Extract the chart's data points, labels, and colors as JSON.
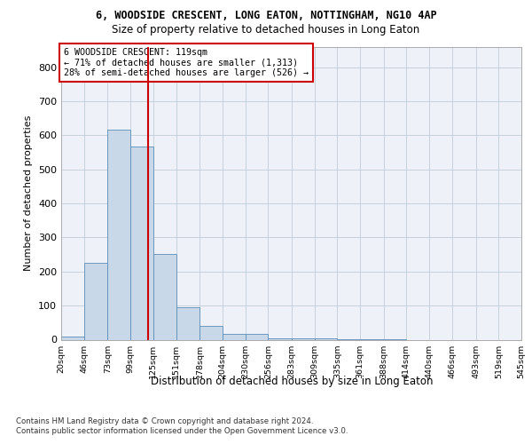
{
  "title": "6, WOODSIDE CRESCENT, LONG EATON, NOTTINGHAM, NG10 4AP",
  "subtitle": "Size of property relative to detached houses in Long Eaton",
  "xlabel": "Distribution of detached houses by size in Long Eaton",
  "ylabel": "Number of detached properties",
  "bar_color": "#c8d8e8",
  "bar_edge_color": "#5b8db8",
  "vline_x": 119,
  "vline_color": "#cc0000",
  "annotation_lines": [
    "6 WOODSIDE CRESCENT: 119sqm",
    "← 71% of detached houses are smaller (1,313)",
    "28% of semi-detached houses are larger (526) →"
  ],
  "annotation_box_color": "#cc0000",
  "bins": [
    20,
    46,
    73,
    99,
    125,
    151,
    178,
    204,
    230,
    256,
    283,
    309,
    335,
    361,
    388,
    414,
    440,
    466,
    493,
    519,
    545
  ],
  "bar_heights": [
    10,
    225,
    617,
    567,
    252,
    94,
    41,
    18,
    17,
    5,
    5,
    3,
    2,
    1,
    1,
    0,
    0,
    0,
    0,
    0
  ],
  "ylim": [
    0,
    860
  ],
  "yticks": [
    0,
    100,
    200,
    300,
    400,
    500,
    600,
    700,
    800
  ],
  "footer_line1": "Contains HM Land Registry data © Crown copyright and database right 2024.",
  "footer_line2": "Contains public sector information licensed under the Open Government Licence v3.0.",
  "background_color": "#eef2f8",
  "grid_color": "#c0ccd8"
}
